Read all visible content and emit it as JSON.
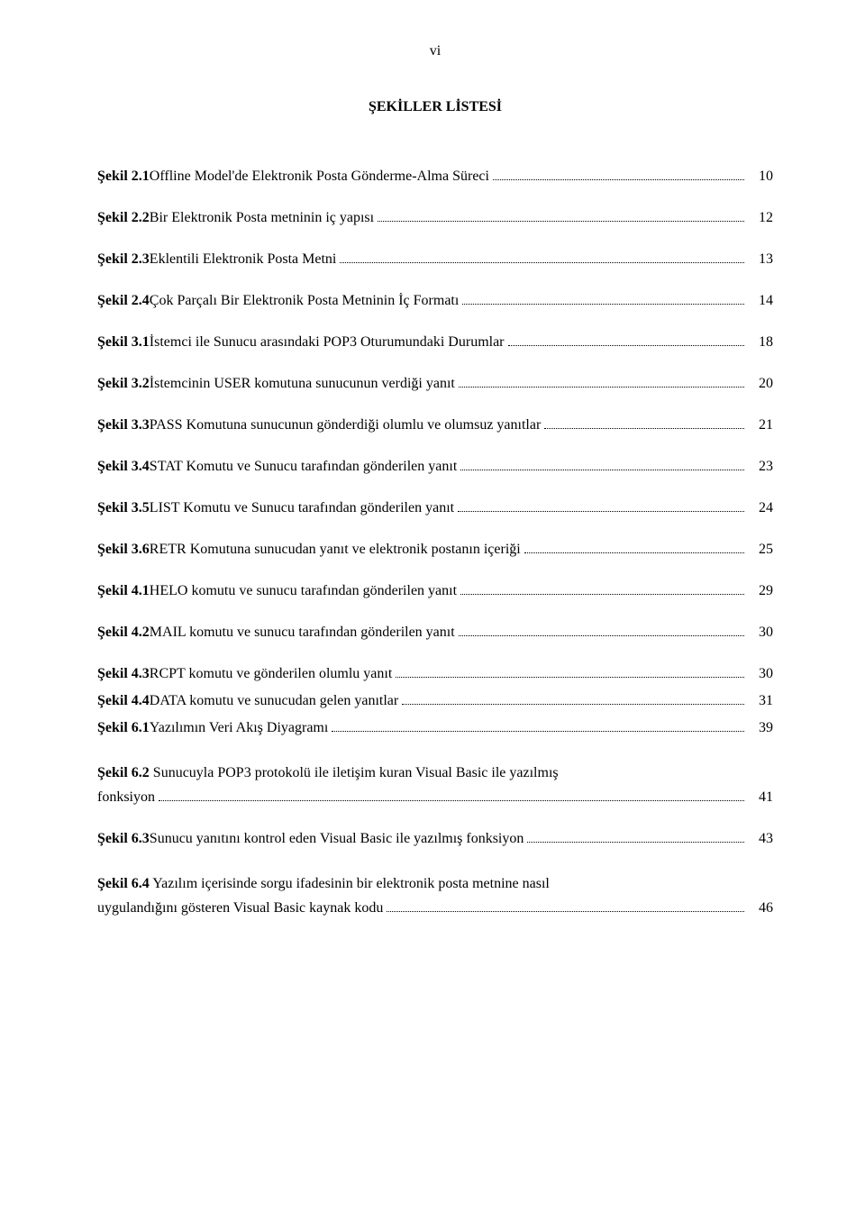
{
  "page_number": "vi",
  "title": "ŞEKİLLER LİSTESİ",
  "entries": [
    {
      "label": "Şekil 2.1",
      "desc": "Offline Model'de Elektronik Posta Gönderme-Alma Süreci",
      "page": "10"
    },
    {
      "label": "Şekil 2.2",
      "desc": "Bir Elektronik Posta metninin iç yapısı",
      "page": "12"
    },
    {
      "label": "Şekil 2.3",
      "desc": "Eklentili Elektronik Posta Metni",
      "page": "13"
    },
    {
      "label": "Şekil 2.4",
      "desc": "Çok Parçalı Bir Elektronik Posta Metninin İç Formatı",
      "page": "14"
    },
    {
      "label": "Şekil 3.1",
      "desc": "İstemci ile Sunucu arasındaki POP3 Oturumundaki Durumlar",
      "page": "18"
    },
    {
      "label": "Şekil 3.2",
      "desc": "İstemcinin USER komutuna sunucunun verdiği yanıt",
      "page": "20"
    },
    {
      "label": "Şekil 3.3",
      "desc": "PASS Komutuna sunucunun gönderdiği olumlu ve olumsuz yanıtlar",
      "page": "21"
    },
    {
      "label": "Şekil 3.4",
      "desc": "STAT Komutu ve Sunucu tarafından gönderilen yanıt",
      "page": "23"
    },
    {
      "label": "Şekil 3.5",
      "desc": "LIST Komutu ve Sunucu tarafından gönderilen yanıt",
      "page": "24"
    },
    {
      "label": "Şekil 3.6",
      "desc": "RETR Komutuna sunucudan yanıt ve elektronik postanın içeriği",
      "page": "25"
    },
    {
      "label": "Şekil 4.1",
      "desc": "HELO komutu ve sunucu tarafından gönderilen yanıt",
      "page": "29"
    },
    {
      "label": "Şekil 4.2",
      "desc": "MAIL komutu ve sunucu tarafından gönderilen yanıt",
      "page": "30"
    },
    {
      "label": "Şekil 4.3",
      "desc": "RCPT komutu ve  gönderilen olumlu yanıt",
      "page": "30",
      "tight": true
    },
    {
      "label": "Şekil 4.4",
      "desc": "DATA komutu ve sunucudan gelen yanıtlar",
      "page": "31",
      "tight": true
    },
    {
      "label": "Şekil 6.1",
      "desc": "Yazılımın Veri Akış Diyagramı",
      "page": "39"
    }
  ],
  "multiline_entries": [
    {
      "label": "Şekil 6.2",
      "first_part": "Sunucuyla POP3 protokolü ile iletişim kuran Visual Basic ile yazılmış",
      "last_part": "fonksiyon",
      "page": "41"
    },
    {
      "label": "Şekil 6.3",
      "first_part": "Sunucu yanıtını kontrol eden Visual Basic ile yazılmış fonksiyon",
      "last_part": "",
      "page": "43",
      "single": true
    },
    {
      "label": "Şekil 6.4",
      "first_part": "Yazılım içerisinde sorgu ifadesinin bir elektronik posta metnine nasıl",
      "last_part": "uygulandığını gösteren Visual Basic kaynak kodu",
      "page": "46"
    }
  ]
}
